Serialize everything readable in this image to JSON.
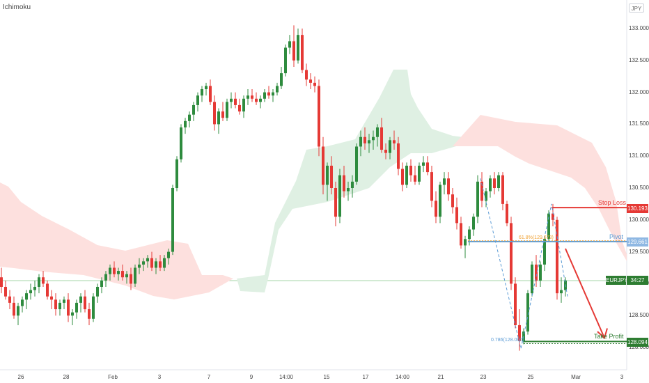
{
  "indicator": "Ichimoku",
  "currency": "JPY",
  "price_axis": [
    "133.000",
    "132.500",
    "132.000",
    "131.500",
    "131.000",
    "130.500",
    "130.000",
    "129.500",
    "129.000",
    "128.500",
    "128.000"
  ],
  "time_axis": [
    "26",
    "28",
    "Feb",
    "3",
    "7",
    "9",
    "14:00",
    "15",
    "17",
    "14:00",
    "21",
    "23",
    "25",
    "Mar",
    "3"
  ],
  "levels": {
    "stop_loss": {
      "label": "Stop Loss",
      "value": "130.193",
      "color": "#e53935"
    },
    "pivot": {
      "label": "Pivot",
      "value": "129.661",
      "color": "#5b9bd5"
    },
    "take_profit": {
      "label": "Take Profit",
      "value": "128.094",
      "color": "#2e7d32"
    }
  },
  "current": {
    "symbol": "EURJPY",
    "countdown": "34:27",
    "color": "#2e7d32"
  },
  "fib": {
    "f618": "61.8%(129.673)",
    "f786": "0.786(128.060)"
  },
  "colors": {
    "bull": "#2e8b3e",
    "bear": "#e53935",
    "cloud_bull": "#dff0e3",
    "cloud_bear": "#fde0de"
  }
}
